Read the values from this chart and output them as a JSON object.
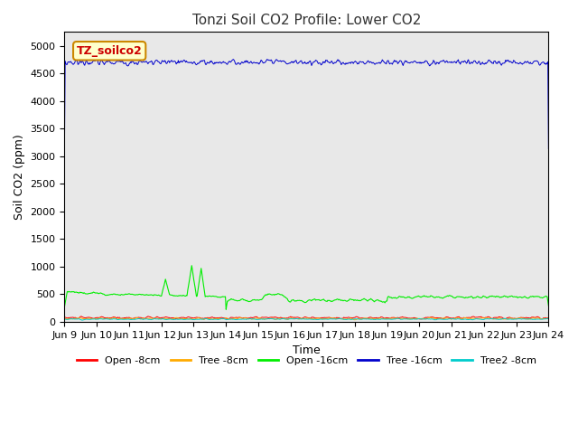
{
  "title": "Tonzi Soil CO2 Profile: Lower CO2",
  "xlabel": "Time",
  "ylabel": "Soil CO2 (ppm)",
  "ylim": [
    0,
    5250
  ],
  "yticks": [
    0,
    500,
    1000,
    1500,
    2000,
    2500,
    3000,
    3500,
    4000,
    4500,
    5000
  ],
  "x_start": 9,
  "x_end": 24,
  "x_tick_days": [
    9,
    10,
    11,
    12,
    13,
    14,
    15,
    16,
    17,
    18,
    19,
    20,
    21,
    22,
    23,
    24
  ],
  "x_tick_labels": [
    "Jun 9",
    "Jun 10",
    "Jun 11",
    "Jun 12",
    "Jun 13",
    "Jun 14",
    "Jun 15",
    "Jun 16",
    "Jun 17",
    "Jun 18",
    "Jun 19",
    "Jun 20",
    "Jun 21",
    "Jun 22",
    "Jun 23",
    "Jun 24"
  ],
  "legend_label": "TZ_soilco2",
  "legend_facecolor": "#ffffcc",
  "legend_edgecolor": "#cc8800",
  "series": {
    "open_8cm": {
      "color": "#ff0000",
      "label": "Open -8cm"
    },
    "tree_8cm": {
      "color": "#ffaa00",
      "label": "Tree -8cm"
    },
    "open_16cm": {
      "color": "#00ee00",
      "label": "Open -16cm"
    },
    "tree_16cm": {
      "color": "#0000cc",
      "label": "Tree -16cm"
    },
    "tree2_8cm": {
      "color": "#00cccc",
      "label": "Tree2 -8cm"
    }
  },
  "background_color": "#e8e8e8",
  "title_fontsize": 11,
  "axis_fontsize": 9,
  "tick_fontsize": 8
}
